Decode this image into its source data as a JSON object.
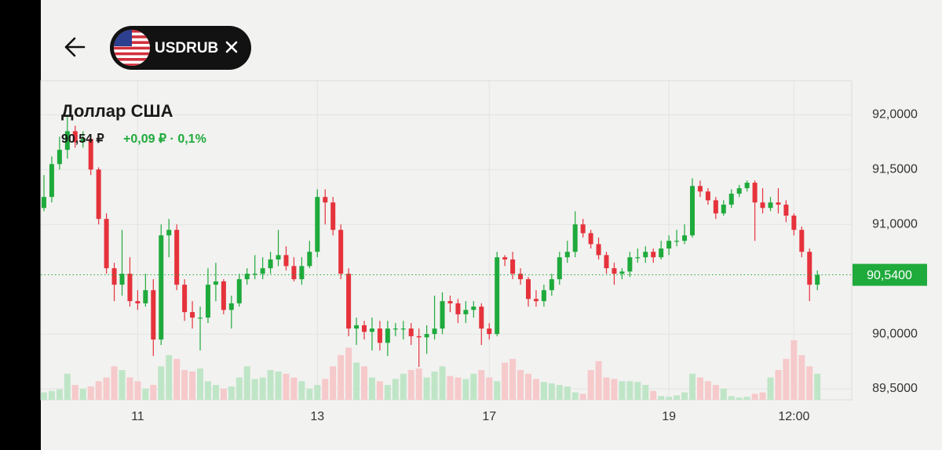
{
  "header": {
    "symbol": "USDRUB"
  },
  "chart_data": {
    "type": "candlestick",
    "title": "Доллар США",
    "price": "90,54 ₽",
    "change": "+0,09 ₽ · 0,1%",
    "current_price": {
      "value": 90.54,
      "label": "90,5400"
    },
    "up_color": "#1faa3c",
    "down_color": "#e5323b",
    "up_volume_color": "#bfe5c7",
    "down_volume_color": "#f6c9cb",
    "open": [
      91.15,
      91.25,
      91.55,
      91.68,
      91.85,
      91.75,
      91.78,
      91.5,
      91.05,
      90.6,
      90.45,
      90.55,
      90.3,
      90.28,
      90.4,
      89.95,
      90.9,
      90.95,
      90.45,
      90.2,
      90.15,
      90.15,
      90.45,
      90.48,
      90.22,
      90.28,
      90.5,
      90.55,
      90.55,
      90.6,
      90.68,
      90.72,
      90.62,
      90.5,
      90.62,
      90.75,
      91.25,
      91.2,
      90.95,
      90.55,
      90.05,
      90.08,
      90.02,
      90.05,
      89.92,
      90.05,
      90.05,
      90.05,
      89.98,
      89.97,
      90.0,
      90.05,
      90.3,
      90.28,
      90.18,
      90.22,
      90.25,
      90.05,
      90.0,
      90.7,
      90.68,
      90.55,
      90.5,
      90.32,
      90.3,
      90.4,
      90.5,
      90.7,
      90.75,
      91.0,
      90.92,
      90.82,
      90.72,
      90.6,
      90.55,
      90.57,
      90.7,
      90.7,
      90.75,
      90.7,
      90.78,
      90.85,
      90.85,
      90.9,
      91.35,
      91.3,
      91.22,
      91.1,
      91.18,
      91.28,
      91.33,
      91.38,
      91.2,
      91.15,
      91.2,
      91.18,
      91.08,
      90.95,
      90.75,
      90.45
    ],
    "high": [
      91.45,
      91.62,
      91.8,
      92.0,
      91.9,
      91.85,
      91.8,
      91.52,
      91.1,
      90.65,
      90.95,
      90.7,
      90.4,
      90.55,
      90.5,
      91.0,
      91.05,
      91.0,
      90.5,
      90.3,
      90.25,
      90.6,
      90.65,
      90.5,
      90.35,
      90.55,
      90.6,
      90.72,
      90.7,
      90.75,
      90.95,
      90.8,
      90.7,
      90.7,
      90.85,
      91.32,
      91.32,
      91.25,
      91.0,
      90.6,
      90.15,
      90.12,
      90.15,
      90.12,
      90.12,
      90.1,
      90.12,
      90.1,
      90.05,
      90.08,
      90.35,
      90.38,
      90.35,
      90.32,
      90.3,
      90.3,
      90.28,
      90.1,
      90.75,
      90.72,
      90.75,
      90.6,
      90.52,
      90.4,
      90.45,
      90.55,
      90.75,
      90.85,
      91.12,
      91.05,
      90.95,
      90.88,
      90.75,
      90.65,
      90.6,
      90.75,
      90.78,
      90.8,
      90.78,
      90.85,
      90.9,
      90.95,
      91.0,
      91.42,
      91.4,
      91.33,
      91.25,
      91.22,
      91.32,
      91.36,
      91.4,
      91.4,
      91.33,
      91.25,
      91.33,
      91.22,
      91.1,
      90.98,
      90.78,
      90.58
    ],
    "low": [
      91.12,
      91.2,
      91.5,
      91.6,
      91.7,
      91.7,
      91.45,
      91.0,
      90.55,
      90.3,
      90.35,
      90.25,
      90.22,
      90.25,
      89.8,
      89.9,
      90.7,
      90.4,
      90.12,
      90.05,
      89.85,
      90.1,
      90.3,
      90.18,
      90.05,
      90.25,
      90.45,
      90.5,
      90.5,
      90.55,
      90.62,
      90.58,
      90.48,
      90.45,
      90.6,
      90.7,
      91.0,
      90.9,
      90.5,
      89.98,
      89.9,
      89.95,
      89.85,
      89.85,
      89.8,
      89.98,
      89.95,
      89.9,
      89.7,
      89.82,
      89.95,
      90.0,
      90.2,
      90.1,
      90.1,
      90.15,
      89.9,
      89.95,
      89.98,
      90.62,
      90.5,
      90.45,
      90.25,
      90.25,
      90.25,
      90.35,
      90.45,
      90.65,
      90.7,
      90.88,
      90.78,
      90.68,
      90.55,
      90.45,
      90.5,
      90.52,
      90.65,
      90.65,
      90.65,
      90.68,
      90.72,
      90.8,
      90.82,
      90.88,
      91.25,
      91.18,
      91.05,
      91.08,
      91.15,
      91.25,
      91.3,
      90.85,
      91.1,
      91.12,
      91.1,
      91.02,
      90.9,
      90.7,
      90.3,
      90.4
    ],
    "close": [
      91.25,
      91.55,
      91.68,
      91.85,
      91.75,
      91.78,
      91.5,
      91.05,
      90.6,
      90.45,
      90.55,
      90.3,
      90.28,
      90.4,
      89.95,
      90.9,
      90.95,
      90.45,
      90.2,
      90.15,
      90.15,
      90.45,
      90.48,
      90.22,
      90.28,
      90.5,
      90.55,
      90.55,
      90.6,
      90.68,
      90.72,
      90.62,
      90.5,
      90.62,
      90.75,
      91.25,
      91.2,
      90.95,
      90.55,
      90.05,
      90.08,
      90.02,
      90.05,
      89.92,
      90.05,
      90.05,
      90.05,
      89.98,
      89.97,
      90.0,
      90.05,
      90.3,
      90.28,
      90.18,
      90.22,
      90.25,
      90.05,
      90.0,
      90.7,
      90.68,
      90.55,
      90.5,
      90.32,
      90.3,
      90.4,
      90.5,
      90.7,
      90.75,
      91.0,
      90.92,
      90.82,
      90.72,
      90.6,
      90.55,
      90.57,
      90.7,
      90.7,
      90.75,
      90.7,
      90.78,
      90.85,
      90.85,
      90.9,
      91.35,
      91.3,
      91.22,
      91.1,
      91.18,
      91.28,
      91.33,
      91.38,
      91.2,
      91.15,
      91.2,
      91.18,
      91.08,
      90.95,
      90.75,
      90.45,
      90.54
    ],
    "volume": [
      10,
      12,
      14,
      35,
      20,
      15,
      18,
      25,
      30,
      45,
      40,
      30,
      25,
      15,
      20,
      45,
      60,
      55,
      40,
      38,
      42,
      25,
      20,
      15,
      18,
      30,
      45,
      28,
      30,
      40,
      38,
      35,
      30,
      25,
      15,
      20,
      28,
      45,
      60,
      70,
      50,
      45,
      30,
      25,
      20,
      28,
      35,
      40,
      42,
      30,
      38,
      45,
      32,
      30,
      28,
      35,
      40,
      30,
      25,
      50,
      55,
      40,
      35,
      28,
      24,
      22,
      20,
      18,
      10,
      8,
      40,
      52,
      30,
      28,
      25,
      25,
      24,
      20,
      12,
      5,
      4,
      6,
      10,
      35,
      30,
      25,
      20,
      15,
      5,
      3,
      4,
      8,
      10,
      30,
      40,
      55,
      80,
      60,
      45,
      35
    ],
    "ylim": [
      89.4,
      92.31
    ],
    "yticks": [
      {
        "value": 89.5,
        "label": "89,5000"
      },
      {
        "value": 90,
        "label": "90,0000"
      },
      {
        "value": 91,
        "label": "91,0000"
      },
      {
        "value": 91.5,
        "label": "91,5000"
      },
      {
        "value": 92,
        "label": "92,0000"
      }
    ],
    "xlim": [
      -0.4,
      103.4
    ],
    "xticks": [
      {
        "value": 12,
        "label": "11"
      },
      {
        "value": 35,
        "label": "13"
      },
      {
        "value": 57,
        "label": "17"
      },
      {
        "value": 80,
        "label": "19"
      },
      {
        "value": 96,
        "label": "12:00"
      }
    ],
    "grid": true
  }
}
